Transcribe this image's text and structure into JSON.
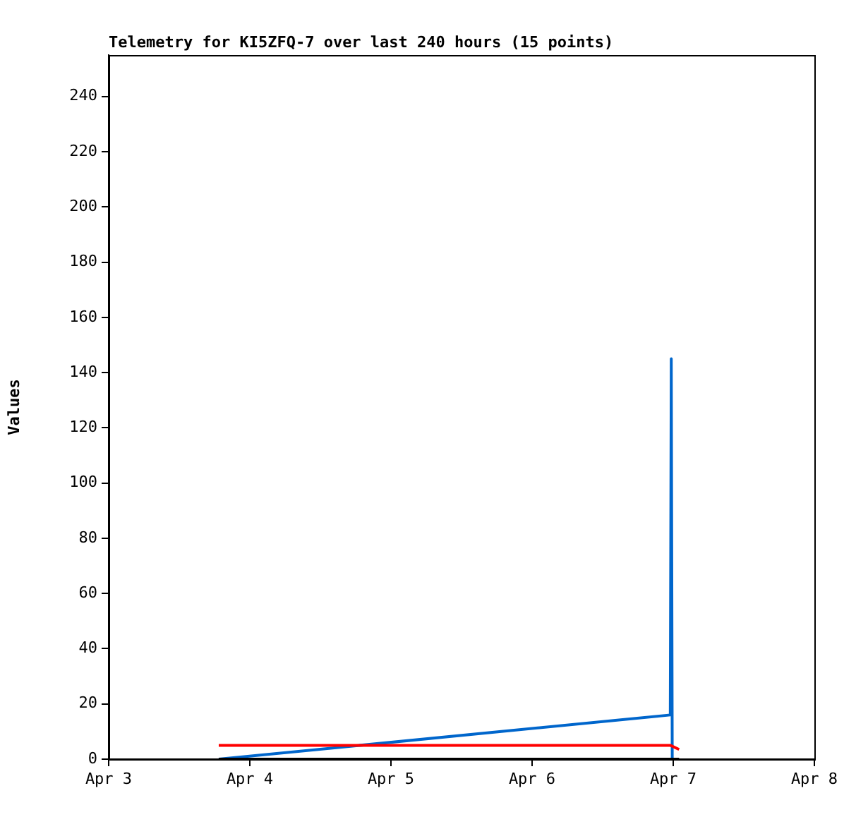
{
  "chart_data": {
    "type": "line",
    "title": "Telemetry for KI5ZFQ-7 over last 240 hours (15 points)",
    "ylabel": "Values",
    "xlim": [
      "--04-03",
      "--04-08"
    ],
    "xticks": [
      {
        "value": "--04-03",
        "label": "Apr 3"
      },
      {
        "value": "--04-04",
        "label": "Apr 4"
      },
      {
        "value": "--04-05",
        "label": "Apr 5"
      },
      {
        "value": "--04-06",
        "label": "Apr 6"
      },
      {
        "value": "--04-07",
        "label": "Apr 7"
      },
      {
        "value": "--04-08",
        "label": "Apr 8"
      }
    ],
    "ylim": [
      0,
      255
    ],
    "yticks": [
      0,
      20,
      40,
      60,
      80,
      100,
      120,
      140,
      160,
      180,
      200,
      220,
      240
    ],
    "grid": false,
    "legend": false,
    "marker": "none",
    "line_style": "solid",
    "series": [
      {
        "color": "#000000",
        "x": [
          "--04-03T18:43",
          "--04-07T01:00"
        ],
        "values": [
          0,
          0
        ]
      },
      {
        "color": "#ff0000",
        "x": [
          "--04-03T18:43",
          "--04-06T23:30",
          "--04-07T01:00"
        ],
        "values": [
          5,
          5,
          3.5
        ]
      },
      {
        "color": "#0066cc",
        "x": [
          "--04-03T18:43",
          "--04-06T23:30",
          "--04-06T23:40",
          "--04-06T23:50"
        ],
        "values": [
          0,
          16,
          145,
          0
        ]
      }
    ]
  }
}
